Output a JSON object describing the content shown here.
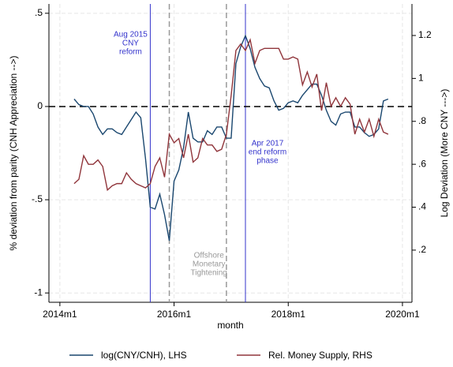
{
  "chart_data": {
    "type": "line",
    "x_label": "month",
    "y_label": "% deviation from parity (CNH Appreciation -->)",
    "y2_label": "Log Deviation (More CNY --->)",
    "xlim": [
      645.7,
      722
    ],
    "xticks": [
      {
        "value": 648,
        "label": "2014m1"
      },
      {
        "value": 672,
        "label": "2016m1"
      },
      {
        "value": 696,
        "label": "2018m1"
      },
      {
        "value": 720,
        "label": "2020m1"
      }
    ],
    "ylim": [
      -1.05,
      0.55
    ],
    "yticks": [
      {
        "value": 0.5,
        "label": ".5"
      },
      0,
      {
        "value": -0.5,
        "label": "-.5"
      },
      -1
    ],
    "y2lim": [
      -0.043,
      1.347
    ],
    "y2ticks": [
      {
        "value": 1.2,
        "label": "1.2"
      },
      1,
      {
        "value": 0.8,
        "label": ".8"
      },
      {
        "value": 0.6,
        "label": ".6"
      },
      {
        "value": 0.4,
        "label": ".4"
      },
      {
        "value": 0.2,
        "label": ".2"
      }
    ],
    "grid": true,
    "hline": 0,
    "x": [
      651,
      652,
      653,
      654,
      655,
      656,
      657,
      658,
      659,
      660,
      661,
      662,
      663,
      664,
      665,
      666,
      667,
      668,
      669,
      670,
      671,
      672,
      673,
      674,
      675,
      676,
      677,
      678,
      679,
      680,
      681,
      682,
      683,
      684,
      685,
      686,
      687,
      688,
      689,
      690,
      691,
      692,
      693,
      694,
      695,
      696,
      697,
      698,
      699,
      700,
      701,
      702,
      703,
      704,
      705,
      706,
      707,
      708,
      709,
      710,
      711,
      712,
      713,
      714,
      715,
      716,
      717
    ],
    "series": [
      {
        "name": "log(CNY/CNH), LHS",
        "color": "#1a476f",
        "values": [
          0.04,
          0.01,
          0.0,
          0.0,
          -0.04,
          -0.11,
          -0.15,
          -0.12,
          -0.12,
          -0.14,
          -0.15,
          -0.11,
          -0.07,
          -0.03,
          -0.06,
          -0.28,
          -0.54,
          -0.55,
          -0.47,
          -0.58,
          -0.72,
          -0.4,
          -0.34,
          -0.22,
          -0.03,
          -0.17,
          -0.19,
          -0.19,
          -0.13,
          -0.15,
          -0.11,
          -0.11,
          -0.17,
          -0.17,
          0.23,
          0.32,
          0.38,
          0.31,
          0.21,
          0.15,
          0.11,
          0.1,
          0.03,
          -0.02,
          -0.01,
          0.02,
          0.03,
          0.02,
          0.06,
          0.09,
          0.12,
          0.12,
          0.06,
          -0.02,
          -0.08,
          -0.1,
          -0.04,
          -0.03,
          -0.03,
          -0.11,
          -0.11,
          -0.14,
          -0.16,
          -0.15,
          -0.12,
          0.03,
          0.04
        ]
      },
      {
        "name": "Rel. Money Supply, RHS",
        "color": "#90353b",
        "axis": "y2",
        "values": [
          0.51,
          0.53,
          0.64,
          0.6,
          0.6,
          0.62,
          0.59,
          0.48,
          0.5,
          0.51,
          0.51,
          0.56,
          0.53,
          0.51,
          0.5,
          0.49,
          0.51,
          0.59,
          0.63,
          0.54,
          0.74,
          0.7,
          0.72,
          0.63,
          0.74,
          0.61,
          0.63,
          0.72,
          0.69,
          0.69,
          0.66,
          0.67,
          0.74,
          0.92,
          1.13,
          1.16,
          1.13,
          1.18,
          1.07,
          1.13,
          1.14,
          1.14,
          1.14,
          1.14,
          1.09,
          1.09,
          1.1,
          1.09,
          0.97,
          1.03,
          0.96,
          1.02,
          0.85,
          0.98,
          0.87,
          0.91,
          0.87,
          0.91,
          0.88,
          0.74,
          0.81,
          0.75,
          0.81,
          0.73,
          0.81,
          0.75,
          0.74
        ]
      }
    ],
    "events": [
      {
        "x": 667,
        "color": "#3333cc",
        "label": [
          "Aug 2015",
          "CNY",
          "reform"
        ]
      },
      {
        "x": 687,
        "color": "#3333cc",
        "label": [
          "Apr 2017",
          "end reform",
          "phase"
        ]
      }
    ],
    "period": {
      "x": [
        671,
        683
      ],
      "color": "#999999",
      "label": [
        "Offshore",
        "Monetary",
        "Tightening"
      ]
    }
  }
}
